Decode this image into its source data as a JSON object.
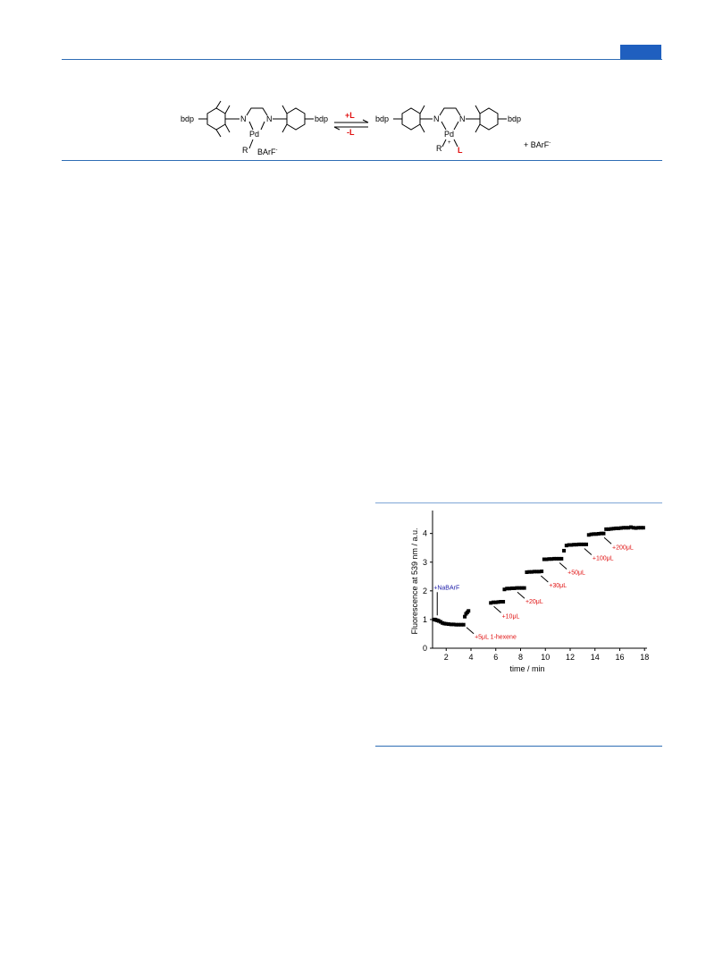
{
  "scheme": {
    "left": {
      "bdp_left": "bdp",
      "bdp_right": "bdp",
      "n1": "N",
      "n2": "N",
      "pd": "Pd",
      "r": "R",
      "counterion": "BArF"
    },
    "arrows": {
      "forward": "+L",
      "reverse": "-L"
    },
    "right": {
      "bdp_left": "bdp",
      "bdp_right": "bdp",
      "n1": "N",
      "n2": "N",
      "pd": "Pd",
      "plus": "+",
      "r": "R",
      "l": "L",
      "counterion": "+ BArF"
    },
    "colors": {
      "red": "#e01010",
      "blue": "#1a1aa8"
    }
  },
  "chart_data": {
    "type": "scatter",
    "xlabel": "time / min",
    "ylabel": "Fluorescence at 539 nm / a.u.",
    "xlim": [
      0.9,
      18.2
    ],
    "ylim": [
      0,
      4.8
    ],
    "xticks": [
      2,
      4,
      6,
      8,
      10,
      12,
      14,
      16,
      18
    ],
    "yticks": [
      0,
      1,
      2,
      3,
      4
    ],
    "series": [
      {
        "points": [
          [
            1.0,
            1.0
          ],
          [
            1.1,
            1.0
          ],
          [
            1.2,
            0.98
          ],
          [
            1.3,
            0.97
          ],
          [
            1.4,
            0.95
          ],
          [
            1.55,
            0.92
          ],
          [
            1.7,
            0.88
          ],
          [
            1.85,
            0.86
          ],
          [
            2.0,
            0.85
          ],
          [
            2.2,
            0.84
          ],
          [
            2.4,
            0.83
          ],
          [
            2.6,
            0.83
          ],
          [
            2.8,
            0.82
          ],
          [
            3.0,
            0.82
          ],
          [
            3.2,
            0.82
          ],
          [
            3.4,
            0.82
          ],
          [
            3.5,
            1.1
          ],
          [
            3.6,
            1.2
          ],
          [
            3.7,
            1.25
          ],
          [
            3.8,
            1.3
          ],
          [
            5.6,
            1.58
          ],
          [
            5.8,
            1.6
          ],
          [
            6.0,
            1.6
          ],
          [
            6.2,
            1.61
          ],
          [
            6.4,
            1.62
          ],
          [
            6.6,
            1.62
          ],
          [
            6.7,
            2.05
          ],
          [
            6.9,
            2.08
          ],
          [
            7.1,
            2.08
          ],
          [
            7.3,
            2.09
          ],
          [
            7.5,
            2.09
          ],
          [
            7.7,
            2.1
          ],
          [
            7.9,
            2.1
          ],
          [
            8.1,
            2.1
          ],
          [
            8.3,
            2.1
          ],
          [
            8.5,
            2.65
          ],
          [
            8.7,
            2.66
          ],
          [
            8.9,
            2.66
          ],
          [
            9.1,
            2.67
          ],
          [
            9.3,
            2.67
          ],
          [
            9.5,
            2.67
          ],
          [
            9.7,
            2.68
          ],
          [
            9.9,
            3.1
          ],
          [
            10.1,
            3.1
          ],
          [
            10.3,
            3.11
          ],
          [
            10.5,
            3.11
          ],
          [
            10.7,
            3.12
          ],
          [
            10.9,
            3.12
          ],
          [
            11.1,
            3.12
          ],
          [
            11.3,
            3.12
          ],
          [
            11.5,
            3.4
          ],
          [
            11.7,
            3.58
          ],
          [
            11.9,
            3.6
          ],
          [
            12.1,
            3.6
          ],
          [
            12.3,
            3.61
          ],
          [
            12.5,
            3.61
          ],
          [
            12.7,
            3.62
          ],
          [
            12.9,
            3.62
          ],
          [
            13.1,
            3.62
          ],
          [
            13.3,
            3.62
          ],
          [
            13.5,
            3.95
          ],
          [
            13.7,
            3.97
          ],
          [
            13.9,
            3.98
          ],
          [
            14.1,
            3.98
          ],
          [
            14.3,
            3.99
          ],
          [
            14.5,
            4.0
          ],
          [
            14.7,
            4.0
          ],
          [
            14.9,
            4.15
          ],
          [
            15.1,
            4.15
          ],
          [
            15.3,
            4.16
          ],
          [
            15.5,
            4.17
          ],
          [
            15.7,
            4.18
          ],
          [
            15.9,
            4.18
          ],
          [
            16.1,
            4.19
          ],
          [
            16.3,
            4.2
          ],
          [
            16.5,
            4.2
          ],
          [
            16.7,
            4.2
          ],
          [
            16.9,
            4.22
          ],
          [
            17.1,
            4.2
          ],
          [
            17.3,
            4.19
          ],
          [
            17.5,
            4.2
          ],
          [
            17.7,
            4.2
          ],
          [
            17.9,
            4.2
          ]
        ]
      }
    ],
    "annotations": [
      {
        "text": "+NaBArF",
        "x": 1.35,
        "y": 1.02,
        "color": "blue"
      },
      {
        "text": "+5μL 1-hexene",
        "x": 3.5,
        "y": 0.82,
        "color": "red"
      },
      {
        "text": "+10μL",
        "x": 5.7,
        "y": 1.55,
        "color": "red"
      },
      {
        "text": "+20μL",
        "x": 7.6,
        "y": 2.05,
        "color": "red"
      },
      {
        "text": "+30μL",
        "x": 9.5,
        "y": 2.62,
        "color": "red"
      },
      {
        "text": "+50μL",
        "x": 11.0,
        "y": 3.07,
        "color": "red"
      },
      {
        "text": "+100μL",
        "x": 13.0,
        "y": 3.57,
        "color": "red"
      },
      {
        "text": "+200μL",
        "x": 14.6,
        "y": 3.95,
        "color": "red"
      }
    ]
  }
}
